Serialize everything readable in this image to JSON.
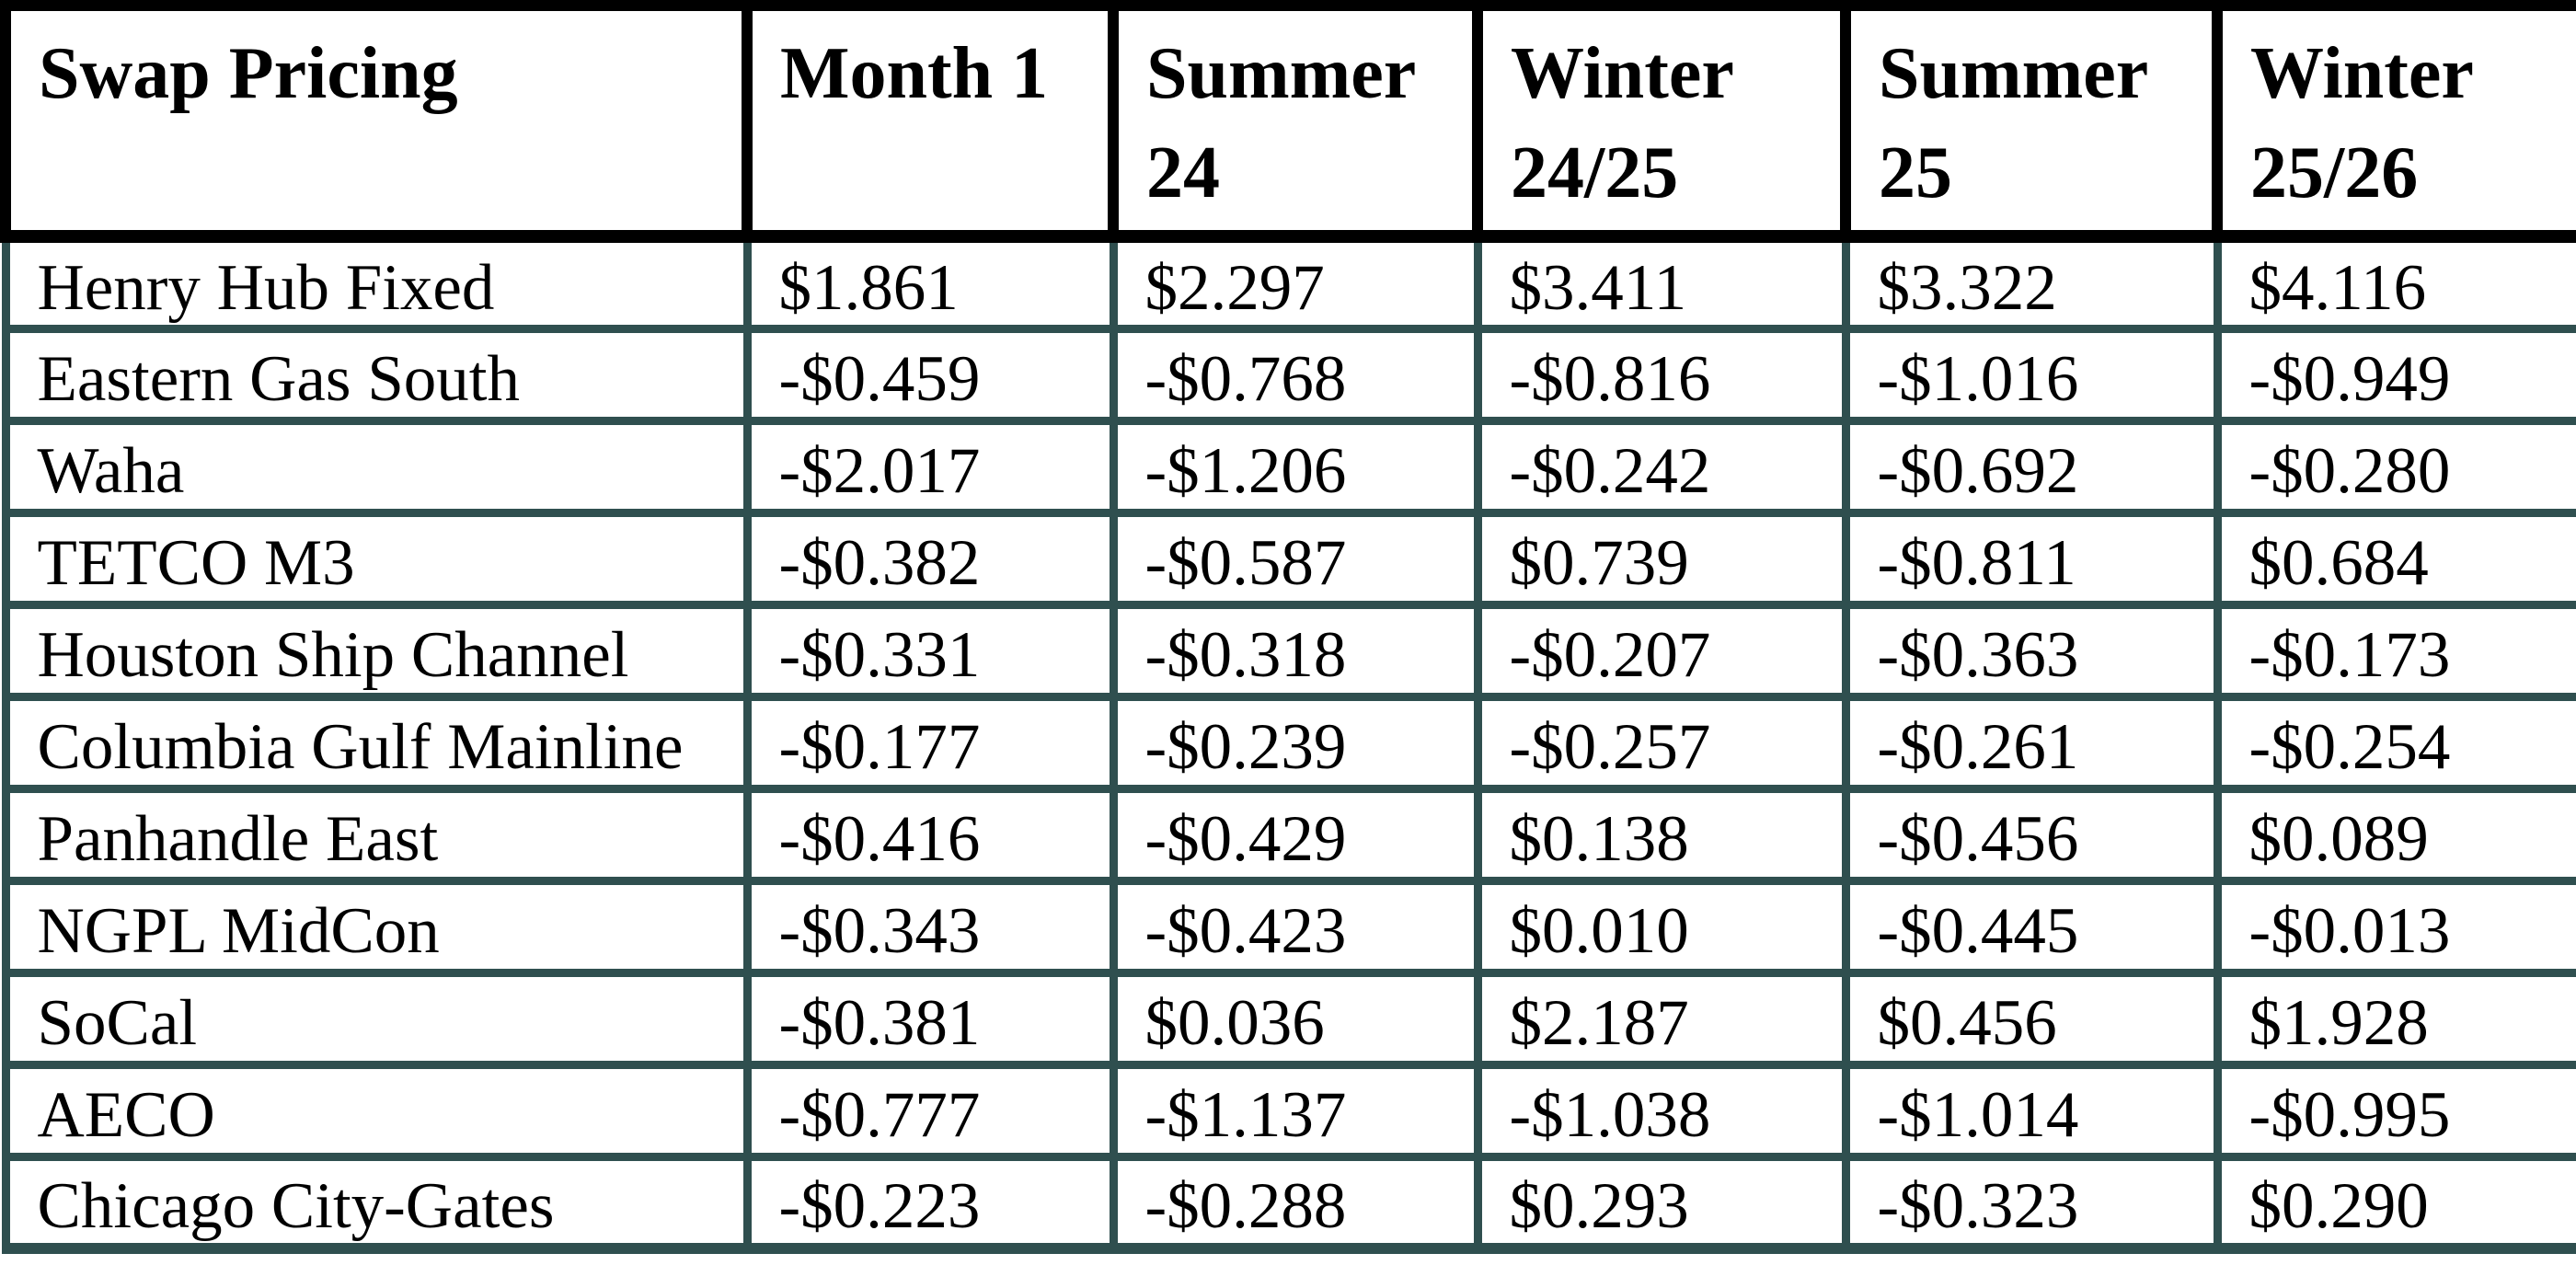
{
  "table": {
    "title_header": "Swap Pricing",
    "columns": [
      "Month 1",
      "Summer 24",
      "Winter 24/25",
      "Summer 25",
      "Winter 25/26"
    ],
    "rows": [
      {
        "label": "Henry Hub Fixed",
        "values": [
          "$1.861",
          "$2.297",
          "$3.411",
          "$3.322",
          "$4.116"
        ]
      },
      {
        "label": "Eastern Gas South",
        "values": [
          "-$0.459",
          "-$0.768",
          "-$0.816",
          "-$1.016",
          "-$0.949"
        ]
      },
      {
        "label": "Waha",
        "values": [
          "-$2.017",
          "-$1.206",
          "-$0.242",
          "-$0.692",
          "-$0.280"
        ]
      },
      {
        "label": "TETCO M3",
        "values": [
          "-$0.382",
          "-$0.587",
          "$0.739",
          "-$0.811",
          "$0.684"
        ]
      },
      {
        "label": "Houston Ship Channel",
        "values": [
          "-$0.331",
          "-$0.318",
          "-$0.207",
          "-$0.363",
          "-$0.173"
        ]
      },
      {
        "label": "Columbia Gulf Mainline",
        "values": [
          "-$0.177",
          "-$0.239",
          "-$0.257",
          "-$0.261",
          "-$0.254"
        ]
      },
      {
        "label": "Panhandle East",
        "values": [
          "-$0.416",
          "-$0.429",
          "$0.138",
          "-$0.456",
          "$0.089"
        ]
      },
      {
        "label": "NGPL MidCon",
        "values": [
          "-$0.343",
          "-$0.423",
          "$0.010",
          "-$0.445",
          "-$0.013"
        ]
      },
      {
        "label": "SoCal",
        "values": [
          "-$0.381",
          "$0.036",
          "$2.187",
          "$0.456",
          "$1.928"
        ]
      },
      {
        "label": "AECO",
        "values": [
          "-$0.777",
          "-$1.137",
          "-$1.038",
          "-$1.014",
          "-$0.995"
        ]
      },
      {
        "label": "Chicago City-Gates",
        "values": [
          "-$0.223",
          "-$0.288",
          "$0.293",
          "-$0.323",
          "$0.290"
        ]
      }
    ]
  },
  "colors": {
    "text": "#000000",
    "background": "#ffffff",
    "header_border": "#000000",
    "body_border": "#2f4f4f"
  }
}
